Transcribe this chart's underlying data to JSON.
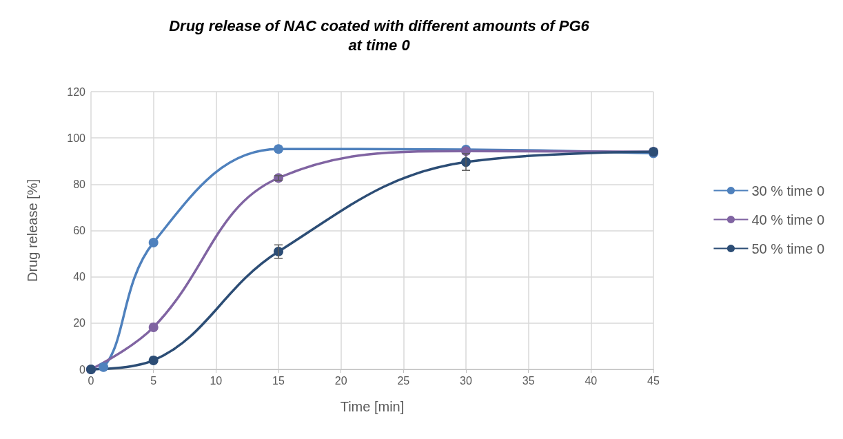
{
  "chart_data": {
    "type": "line",
    "title": "Drug release of NAC coated with different amounts of PG6\nat time 0",
    "xlabel": "Time [min]",
    "ylabel": "Drug release [%]",
    "xlim": [
      0,
      45
    ],
    "xticks": [
      0,
      5,
      10,
      15,
      20,
      25,
      30,
      35,
      40,
      45
    ],
    "ylim": [
      0,
      120
    ],
    "yticks": [
      0,
      20,
      40,
      60,
      80,
      100,
      120
    ],
    "grid": true,
    "legend": "right",
    "marker": "circle",
    "line_style": "solid",
    "series": [
      {
        "name": "30 % time 0",
        "color": "#4f81bd",
        "x": [
          0,
          1,
          5,
          15,
          30,
          45
        ],
        "values": [
          0,
          1,
          54.8,
          95.2,
          95,
          93.4
        ],
        "errors": [
          null,
          null,
          null,
          null,
          null,
          null
        ]
      },
      {
        "name": "40 % time 0",
        "color": "#8064a2",
        "x": [
          0,
          5,
          15,
          30,
          45
        ],
        "values": [
          0,
          18.2,
          82.7,
          94.3,
          94
        ],
        "errors": [
          null,
          null,
          1,
          null,
          null
        ]
      },
      {
        "name": "50 % time 0",
        "color": "#2c4d75",
        "x": [
          0,
          5,
          15,
          30,
          45
        ],
        "values": [
          0,
          3.9,
          50.9,
          89.6,
          94
        ],
        "errors": [
          null,
          null,
          2.9,
          3.6,
          null
        ]
      }
    ]
  }
}
